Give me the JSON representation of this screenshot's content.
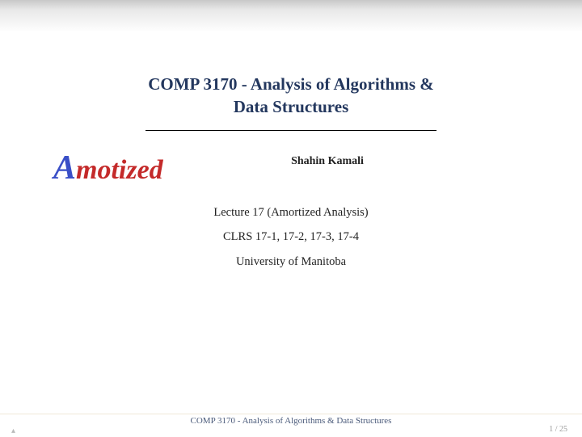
{
  "colors": {
    "title": "#23375e",
    "logo_a": "#3a4fc7",
    "logo_rest": "#c42a2a",
    "body_text": "#222222",
    "footer": "#4a5a7a",
    "pagenum": "#9a9a9a"
  },
  "title_line1": "COMP 3170 - Analysis of Algorithms &",
  "title_line2": "Data Structures",
  "logo_first_letter": "A",
  "logo_rest": "motized",
  "author": "Shahin Kamali",
  "lecture": "Lecture 17 (Amortized Analysis)",
  "reading": "CLRS 17-1, 17-2, 17-3, 17-4",
  "affiliation": "University of Manitoba",
  "footer": "COMP 3170 - Analysis of Algorithms & Data Structures",
  "page": "1 / 25"
}
